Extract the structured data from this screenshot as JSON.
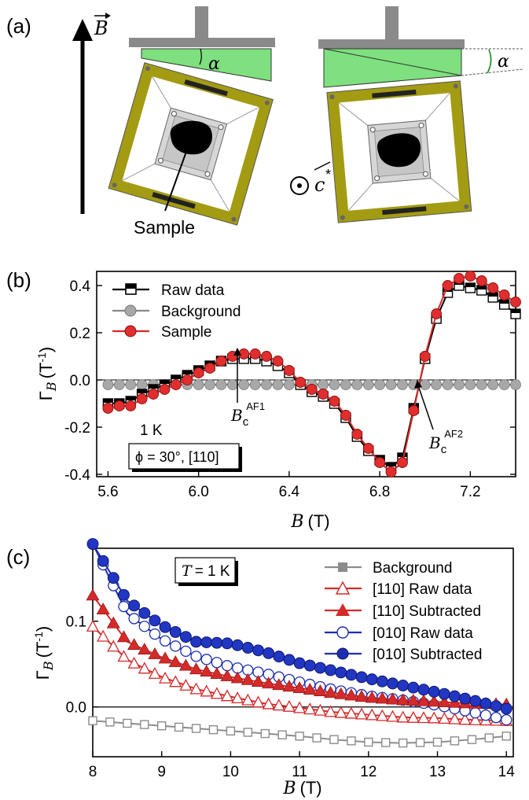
{
  "panel_a": {
    "label": "(a)",
    "field_label": "B",
    "c_label": "c",
    "c_superscript": "*",
    "alpha_label": "α",
    "sample_label": "Sample"
  },
  "panel_b": {
    "label": "(b)",
    "ylabel_main": "Γ",
    "ylabel_sub": "B",
    "ylabel_unit": "(T",
    "ylabel_exp": "-1",
    "ylabel_close": ")",
    "xlabel_var": "B",
    "xlabel_unit": "(T)",
    "temp_text": "1 K",
    "info_text": "ϕ = 30°, [110]",
    "ann1_main": "B",
    "ann1_sub": "c",
    "ann1_sup": "AF1",
    "ann2_main": "B",
    "ann2_sub": "c",
    "ann2_sup": "AF2",
    "xticks": [
      "5.6",
      "6.0",
      "6.4",
      "6.8",
      "7.2"
    ],
    "yticks": [
      "-0.4",
      "-0.2",
      "0.0",
      "0.2",
      "0.4"
    ],
    "legend": [
      "Raw data",
      "Background",
      "Sample"
    ]
  },
  "panel_c": {
    "label": "(c)",
    "ylabel_main": "Γ",
    "ylabel_sub": "B",
    "ylabel_unit": "(T",
    "ylabel_exp": "-1",
    "ylabel_close": ")",
    "xlabel_var": "B",
    "xlabel_unit": "(T)",
    "temp_var": "T",
    "temp_val": "= 1 K",
    "xticks": [
      "8",
      "9",
      "10",
      "11",
      "12",
      "13",
      "14"
    ],
    "yticks": [
      "0.0",
      "0.1"
    ],
    "legend": [
      "Background",
      "[110] Raw data",
      "[110] Subtracted",
      "[010] Raw data",
      "[010] Subtracted"
    ]
  },
  "colors": {
    "red": "#d42a2a",
    "blue": "#1e2eb0",
    "gray": "#8c8c8c",
    "frame": "#a39b12",
    "green": "#7ee07e"
  },
  "chart_data": [
    {
      "type": "line",
      "xlabel": "B (T)",
      "ylabel": "Γ_B (T^-1)",
      "xlim": [
        5.55,
        7.4
      ],
      "ylim": [
        -0.41,
        0.46
      ],
      "x": [
        5.6,
        5.65,
        5.7,
        5.75,
        5.8,
        5.85,
        5.9,
        5.95,
        6.0,
        6.05,
        6.1,
        6.15,
        6.2,
        6.25,
        6.3,
        6.35,
        6.4,
        6.45,
        6.5,
        6.55,
        6.6,
        6.65,
        6.7,
        6.75,
        6.8,
        6.85,
        6.9,
        6.95,
        7.0,
        7.05,
        7.1,
        7.15,
        7.2,
        7.25,
        7.3,
        7.35,
        7.4
      ],
      "series": [
        {
          "name": "Raw data",
          "values": [
            -0.1,
            -0.1,
            -0.09,
            -0.06,
            -0.04,
            -0.02,
            0.0,
            0.02,
            0.04,
            0.06,
            0.08,
            0.09,
            0.09,
            0.09,
            0.08,
            0.06,
            0.03,
            -0.02,
            -0.05,
            -0.07,
            -0.1,
            -0.16,
            -0.24,
            -0.3,
            -0.34,
            -0.37,
            -0.33,
            -0.12,
            0.09,
            0.26,
            0.37,
            0.4,
            0.39,
            0.38,
            0.35,
            0.32,
            0.28
          ]
        },
        {
          "name": "Background",
          "values": [
            -0.02,
            -0.02,
            -0.02,
            -0.02,
            -0.02,
            -0.02,
            -0.02,
            -0.02,
            -0.02,
            -0.02,
            -0.02,
            -0.02,
            -0.02,
            -0.02,
            -0.02,
            -0.02,
            -0.02,
            -0.02,
            -0.02,
            -0.02,
            -0.02,
            -0.02,
            -0.02,
            -0.02,
            -0.02,
            -0.02,
            -0.02,
            -0.02,
            -0.02,
            -0.02,
            -0.02,
            -0.02,
            -0.02,
            -0.02,
            -0.02,
            -0.02,
            -0.02
          ]
        },
        {
          "name": "Sample",
          "values": [
            -0.12,
            -0.11,
            -0.11,
            -0.08,
            -0.06,
            -0.04,
            -0.02,
            0.0,
            0.03,
            0.05,
            0.08,
            0.1,
            0.11,
            0.11,
            0.1,
            0.08,
            0.04,
            -0.01,
            -0.04,
            -0.06,
            -0.09,
            -0.15,
            -0.23,
            -0.29,
            -0.35,
            -0.39,
            -0.35,
            -0.13,
            0.1,
            0.28,
            0.4,
            0.43,
            0.44,
            0.42,
            0.39,
            0.36,
            0.33
          ]
        }
      ]
    },
    {
      "type": "line",
      "xlabel": "B (T)",
      "ylabel": "Γ_B (T^-1)",
      "xlim": [
        8.0,
        14.1
      ],
      "ylim": [
        -0.058,
        0.185
      ],
      "series": [
        {
          "name": "Background",
          "x": [
            8,
            8.5,
            9,
            9.5,
            10,
            10.5,
            11,
            11.5,
            12,
            12.5,
            13,
            13.5,
            14
          ],
          "values": [
            -0.016,
            -0.019,
            -0.022,
            -0.025,
            -0.028,
            -0.031,
            -0.034,
            -0.038,
            -0.041,
            -0.042,
            -0.041,
            -0.038,
            -0.034
          ]
        },
        {
          "name": "[110] Raw data",
          "x": [
            8,
            8.5,
            9,
            9.5,
            10,
            10.5,
            11,
            11.5,
            12,
            12.5,
            13,
            13.5,
            14
          ],
          "values": [
            0.094,
            0.055,
            0.035,
            0.021,
            0.012,
            0.004,
            -0.001,
            -0.006,
            -0.009,
            -0.012,
            -0.013,
            -0.015,
            -0.016
          ]
        },
        {
          "name": "[110] Subtracted",
          "x": [
            8,
            8.5,
            9,
            9.5,
            10,
            10.5,
            11,
            11.5,
            12,
            12.5,
            13,
            13.5,
            14
          ],
          "values": [
            0.13,
            0.076,
            0.058,
            0.044,
            0.035,
            0.028,
            0.022,
            0.016,
            0.011,
            0.008,
            0.006,
            0.004,
            0.003
          ]
        },
        {
          "name": "[010] Raw data",
          "x": [
            8,
            8.5,
            9,
            9.5,
            10,
            10.5,
            11,
            11.5,
            12,
            12.5,
            13,
            13.5,
            14
          ],
          "values": [
            0.19,
            0.109,
            0.079,
            0.059,
            0.047,
            0.039,
            0.029,
            0.02,
            0.013,
            0.008,
            0.002,
            -0.006,
            -0.015
          ]
        },
        {
          "name": "[010] Subtracted",
          "x": [
            8,
            8.5,
            9,
            9.5,
            10,
            10.5,
            11,
            11.5,
            12,
            12.5,
            13,
            13.5,
            14
          ],
          "values": [
            0.19,
            0.124,
            0.095,
            0.076,
            0.074,
            0.064,
            0.051,
            0.042,
            0.033,
            0.025,
            0.017,
            0.008,
            -0.002
          ]
        }
      ]
    }
  ]
}
